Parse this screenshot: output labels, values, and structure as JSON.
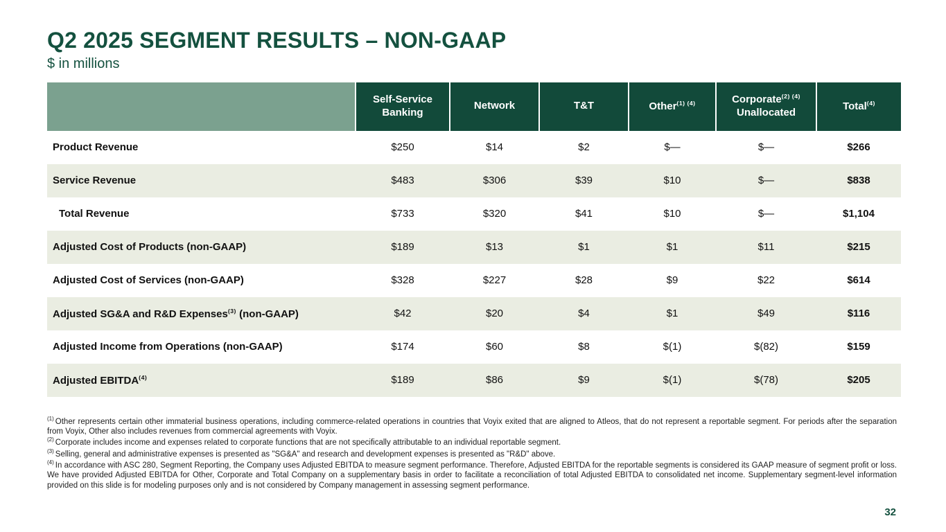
{
  "slide": {
    "title": "Q2 2025 SEGMENT RESULTS – NON-GAAP",
    "subtitle": "$ in millions",
    "page_number": "32"
  },
  "colors": {
    "brand_dark_green": "#124A3A",
    "title_green": "#14513F",
    "sage_header": "#7BA18F",
    "row_alt_band": "#EAEDE2",
    "row_white": "#FFFFFF",
    "header_text": "#FFFFFF",
    "body_text": "#111111"
  },
  "table": {
    "columns": [
      {
        "label": "Self-Service Banking"
      },
      {
        "label": "Network"
      },
      {
        "label": "T&T"
      },
      {
        "label": "Other",
        "sup": "(1) (4)"
      },
      {
        "label": "Corporate",
        "sup": "(2) (4)",
        "label2": "Unallocated"
      },
      {
        "label": "Total",
        "sup": "(4)"
      }
    ],
    "rows": [
      {
        "label": "Product Revenue",
        "values": [
          "$250",
          "$14",
          "$2",
          "$—",
          "$—",
          "$266"
        ]
      },
      {
        "label": "Service Revenue",
        "values": [
          "$483",
          "$306",
          "$39",
          "$10",
          "$—",
          "$838"
        ]
      },
      {
        "label": "Total Revenue",
        "indent": true,
        "values": [
          "$733",
          "$320",
          "$41",
          "$10",
          "$—",
          "$1,104"
        ]
      },
      {
        "label": "Adjusted Cost of Products (non-GAAP)",
        "values": [
          "$189",
          "$13",
          "$1",
          "$1",
          "$11",
          "$215"
        ]
      },
      {
        "label": "Adjusted Cost of Services (non-GAAP)",
        "values": [
          "$328",
          "$227",
          "$28",
          "$9",
          "$22",
          "$614"
        ]
      },
      {
        "label": "Adjusted SG&A and R&D Expenses",
        "sup": "(3)",
        "label_after": " (non-GAAP)",
        "values": [
          "$42",
          "$20",
          "$4",
          "$1",
          "$49",
          "$116"
        ]
      },
      {
        "label": "Adjusted Income from Operations (non-GAAP)",
        "values": [
          "$174",
          "$60",
          "$8",
          "$(1)",
          "$(82)",
          "$159"
        ]
      },
      {
        "label": "Adjusted EBITDA",
        "sup": "(4)",
        "values": [
          "$189",
          "$86",
          "$9",
          "$(1)",
          "$(78)",
          "$205"
        ]
      }
    ]
  },
  "footnotes": [
    {
      "sup": "(1)",
      "text": "Other represents certain other immaterial business operations, including commerce-related operations in countries that Voyix exited that are aligned to Atleos, that do not represent a reportable segment. For periods after the separation from Voyix, Other also includes revenues from commercial agreements with Voyix."
    },
    {
      "sup": "(2)",
      "text": "Corporate includes income and expenses related to corporate functions that are not specifically attributable to an individual reportable segment."
    },
    {
      "sup": "(3)",
      "text": "Selling, general and administrative expenses is presented as \"SG&A\" and research and development expenses is presented as \"R&D\" above."
    },
    {
      "sup": "(4)",
      "text": "In accordance with ASC 280, Segment Reporting, the Company uses Adjusted EBITDA to measure segment performance. Therefore, Adjusted EBITDA for the reportable segments is considered its GAAP measure of segment profit or loss. We have provided Adjusted EBITDA for Other, Corporate and Total Company on a supplementary basis in order to facilitate a reconciliation of total Adjusted EBITDA to consolidated net income. Supplementary segment-level information provided on this slide is for modeling purposes only and is not considered by Company management in assessing segment performance."
    }
  ]
}
